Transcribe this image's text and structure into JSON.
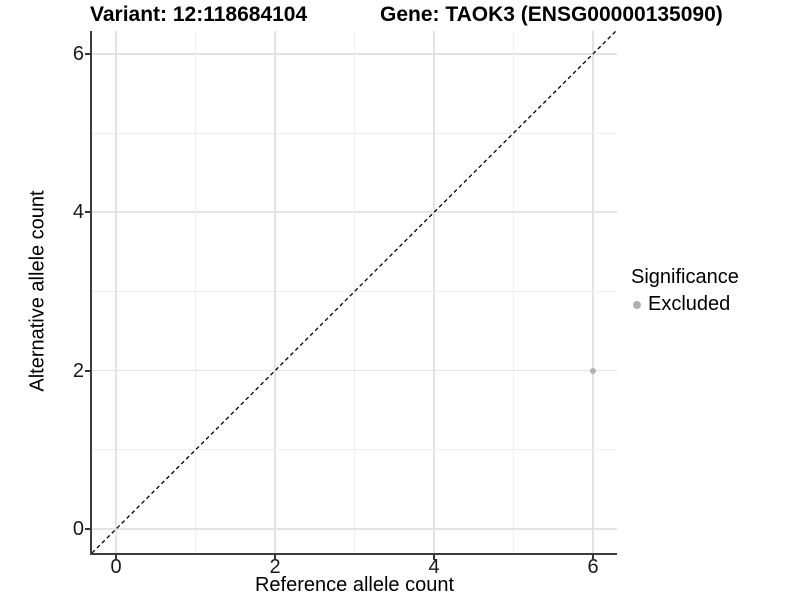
{
  "header": {
    "variant_title": "Variant: 12:118684104",
    "gene_title": "Gene: TAOK3 (ENSG00000135090)"
  },
  "chart_data": {
    "type": "scatter",
    "title": "Variant: 12:118684104   Gene: TAOK3 (ENSG00000135090)",
    "xlabel": "Reference allele count",
    "ylabel": "Alternative allele count",
    "xlim": [
      -0.3,
      6.3
    ],
    "ylim": [
      -0.3,
      6.3
    ],
    "x_ticks": [
      0,
      2,
      4,
      6
    ],
    "y_ticks": [
      0,
      2,
      4,
      6
    ],
    "x_tick_labels": [
      "0",
      "2",
      "4",
      "6"
    ],
    "y_tick_labels": [
      "0",
      "2",
      "4",
      "6"
    ],
    "grid": "on",
    "major_grid_values": [
      0,
      2,
      4,
      6
    ],
    "minor_grid_values": [
      1,
      3,
      5
    ],
    "reference_line": {
      "type": "identity y=x",
      "style": "dashed",
      "color": "#000000"
    },
    "legend": {
      "title": "Significance",
      "position": "right",
      "items": [
        {
          "label": "Excluded",
          "color": "#b0b0b0"
        }
      ]
    },
    "series": [
      {
        "name": "Excluded",
        "color": "#b0b0b0",
        "points": [
          {
            "x": 6,
            "y": 2
          }
        ]
      }
    ],
    "colors": {
      "background": "#ffffff",
      "major_grid": "#e3e3e3",
      "minor_grid": "#efefef",
      "axis_line": "#3c3c3c",
      "tick_mark": "#333333",
      "point": "#b0b0b0",
      "reference_line": "#000000"
    }
  }
}
